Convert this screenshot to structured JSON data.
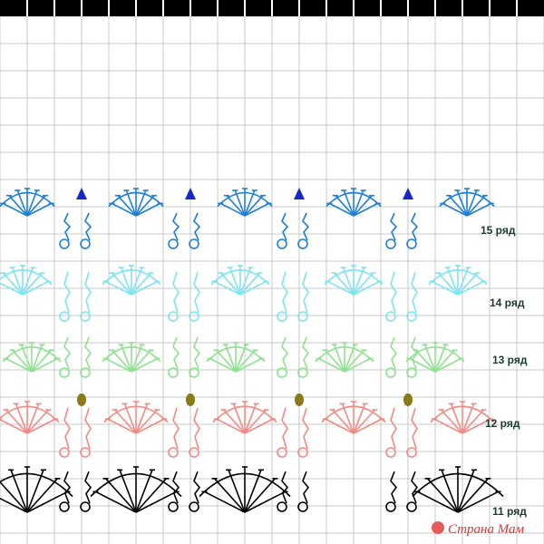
{
  "row_labels": [
    "15 ряд",
    "14 ряд",
    "13 ряд",
    "12 ряд",
    "11 ряд"
  ],
  "watermark": "Страна Мам"
}
